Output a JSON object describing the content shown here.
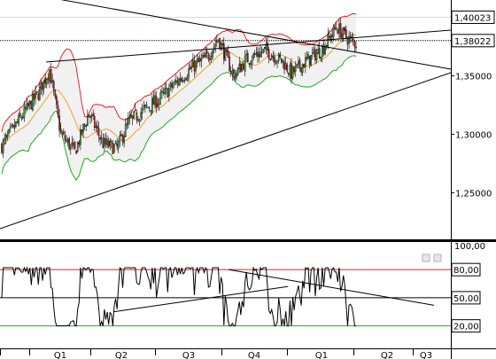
{
  "chart_data": [
    {
      "type": "candlestick",
      "panel": "main",
      "y_ticks": [
        "1,25000",
        "1,30000",
        "1,35000"
      ],
      "y_tick_values": [
        1.25,
        1.3,
        1.35
      ],
      "ylim": [
        1.21,
        1.415
      ],
      "price_boxes": [
        {
          "label": "1,40023",
          "value": 1.40023
        },
        {
          "label": "1,38022",
          "value": 1.38022
        }
      ],
      "colors": {
        "up": "#44bb44",
        "down": "#dd2222",
        "upper_band": "#ee2222",
        "middle_band": "#f0a030",
        "lower_band": "#22aa22",
        "band_fill": "#f1f1f1",
        "trendline": "#000000"
      }
    },
    {
      "type": "line",
      "panel": "oscillator",
      "y_ticks": [
        "20,00",
        "50,00",
        "80,00"
      ],
      "y_tick_values": [
        20,
        50,
        80
      ],
      "ylim": [
        -3,
        100
      ],
      "top_label": "100,00",
      "levels": [
        {
          "value": 80,
          "color": "#dd2222"
        },
        {
          "value": 50,
          "color": "#000000"
        },
        {
          "value": 20,
          "color": "#22aa22"
        }
      ]
    }
  ],
  "x_axis": {
    "tick_labels": [
      "Q1",
      "Q2",
      "Q3",
      "Q4",
      "Q1",
      "Q2",
      "Q3"
    ]
  }
}
